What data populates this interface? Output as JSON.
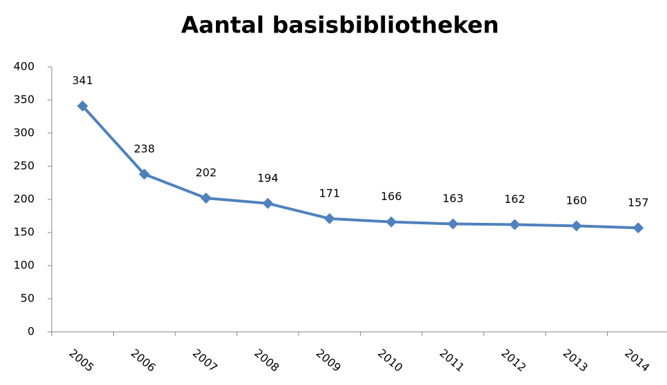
{
  "chart_data": {
    "type": "line",
    "title": "Aantal basisbibliotheken",
    "categories": [
      "2005",
      "2006",
      "2007",
      "2008",
      "2009",
      "2010",
      "2011",
      "2012",
      "2013",
      "2014"
    ],
    "values": [
      341,
      238,
      202,
      194,
      171,
      166,
      163,
      162,
      160,
      157
    ],
    "color": "#4f81bd",
    "ylim": [
      0,
      400
    ],
    "yticks": [
      0,
      50,
      100,
      150,
      200,
      250,
      300,
      350,
      400
    ],
    "grid": false
  }
}
